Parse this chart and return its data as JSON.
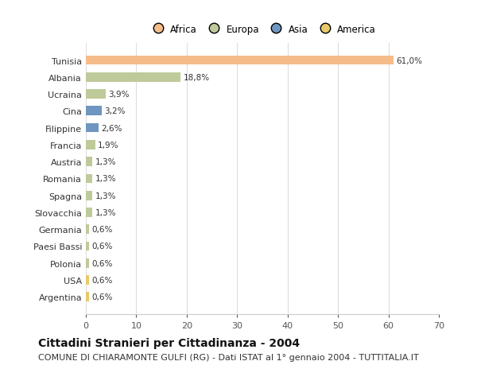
{
  "title1": "Cittadini Stranieri per Cittadinanza - 2004",
  "title2": "COMUNE DI CHIARAMONTE GULFI (RG) - Dati ISTAT al 1° gennaio 2004 - TUTTITALIA.IT",
  "categories": [
    "Tunisia",
    "Albania",
    "Ucraina",
    "Cina",
    "Filippine",
    "Francia",
    "Austria",
    "Romania",
    "Spagna",
    "Slovacchia",
    "Germania",
    "Paesi Bassi",
    "Polonia",
    "USA",
    "Argentina"
  ],
  "values": [
    61.0,
    18.8,
    3.9,
    3.2,
    2.6,
    1.9,
    1.3,
    1.3,
    1.3,
    1.3,
    0.6,
    0.6,
    0.6,
    0.6,
    0.6
  ],
  "labels": [
    "61,0%",
    "18,8%",
    "3,9%",
    "3,2%",
    "2,6%",
    "1,9%",
    "1,3%",
    "1,3%",
    "1,3%",
    "1,3%",
    "0,6%",
    "0,6%",
    "0,6%",
    "0,6%",
    "0,6%"
  ],
  "colors": [
    "#F5BC8A",
    "#BFCA9A",
    "#BFCA9A",
    "#6E96C0",
    "#6E96C0",
    "#BFCA9A",
    "#BFCA9A",
    "#BFCA9A",
    "#BFCA9A",
    "#BFCA9A",
    "#BFCA9A",
    "#BFCA9A",
    "#BFCA9A",
    "#E8C96A",
    "#E8C96A"
  ],
  "legend_labels": [
    "Africa",
    "Europa",
    "Asia",
    "America"
  ],
  "legend_colors": [
    "#F5BC8A",
    "#BFCA9A",
    "#6E96C0",
    "#E8C96A"
  ],
  "xlim": [
    0,
    70
  ],
  "xticks": [
    0,
    10,
    20,
    30,
    40,
    50,
    60,
    70
  ],
  "background_color": "#ffffff",
  "plot_background": "#ffffff",
  "bar_height": 0.55,
  "title1_fontsize": 10,
  "title2_fontsize": 8
}
